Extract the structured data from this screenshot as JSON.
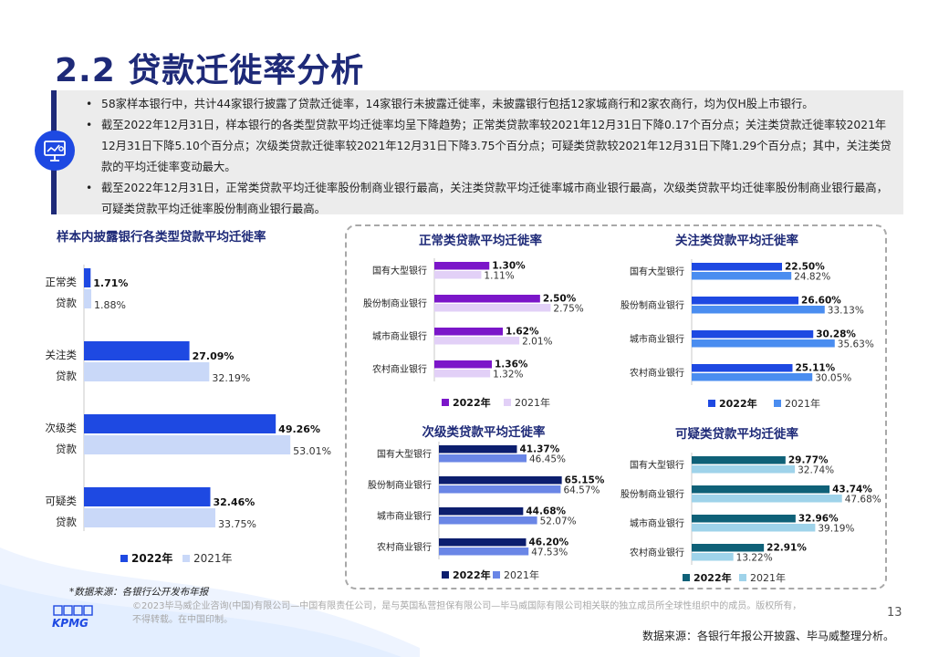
{
  "page": {
    "title": "2.2 贷款迁徙率分析",
    "page_number": "13",
    "source_note": "*数据来源：各银行公开发布年报",
    "bottom_source": "数据来源：各银行年报公开披露、毕马威整理分析。",
    "copyright": [
      "©2023毕马威企业咨询(中国)有限公司—中国有限责任公司，是与英国私营担保有限公司—毕马威国际有限公司相关联的独立成员所全球性组织中的成员。版权所有，",
      "不得转载。在中国印制。"
    ],
    "logo_text": "KPMG"
  },
  "summary": {
    "bullets": [
      "58家样本银行中，共计44家银行披露了贷款迁徙率，14家银行未披露迁徙率，未披露银行包括12家城商行和2家农商行，均为仅H股上市银行。",
      "截至2022年12月31日，样本银行的各类型贷款平均迁徙率均呈下降趋势；正常类贷款率较2021年12月31日下降0.17个百分点；关注类贷款迁徙率较2021年12月31日下降5.10个百分点；次级类贷款迁徙率较2021年12月31日下降3.75个百分点；可疑类贷款较2021年12月31日下降1.29个百分点；其中，关注类贷款的平均迁徙率变动最大。",
      "截至2022年12月31日，正常类贷款平均迁徙率股份制商业银行最高，关注类贷款平均迁徙率城市商业银行最高，次级类贷款平均迁徙率股份制商业银行最高，可疑类贷款平均迁徙率股份制商业银行最高。"
    ]
  },
  "chart_data": [
    {
      "id": "main",
      "type": "bar",
      "orientation": "horizontal",
      "title": "样本内披露银行各类型贷款平均迁徙率",
      "categories": [
        [
          "正常类",
          "贷款"
        ],
        [
          "关注类",
          "贷款"
        ],
        [
          "次级类",
          "贷款"
        ],
        [
          "可疑类",
          "贷款"
        ]
      ],
      "series": [
        {
          "name": "2022年",
          "values": [
            1.71,
            27.09,
            49.26,
            32.46
          ],
          "labels": [
            "1.71%",
            "27.09%",
            "49.26%",
            "32.46%"
          ],
          "color": "#1e49e2"
        },
        {
          "name": "2021年",
          "values": [
            1.88,
            32.19,
            53.01,
            33.75
          ],
          "labels": [
            "1.88%",
            "32.19%",
            "53.01%",
            "33.75%"
          ],
          "color": "#c9d8f8"
        }
      ],
      "xlim": [
        0,
        60
      ],
      "legend": "bottom-left"
    },
    {
      "id": "normal",
      "type": "bar",
      "orientation": "horizontal",
      "title": "正常类贷款平均迁徙率",
      "categories": [
        "国有大型银行",
        "股份制商业银行",
        "城市商业银行",
        "农村商业银行"
      ],
      "series": [
        {
          "name": "2022年",
          "values": [
            1.3,
            2.5,
            1.62,
            1.36
          ],
          "labels": [
            "1.30%",
            "2.50%",
            "1.62%",
            "1.36%"
          ],
          "color": "#7b16c9"
        },
        {
          "name": "2021年",
          "values": [
            1.11,
            2.75,
            2.01,
            1.32
          ],
          "labels": [
            "1.11%",
            "2.75%",
            "2.01%",
            "1.32%"
          ],
          "color": "#e2d0f7"
        }
      ],
      "xlim": [
        0,
        3
      ],
      "legend": "bottom"
    },
    {
      "id": "attention",
      "type": "bar",
      "orientation": "horizontal",
      "title": "关注类贷款平均迁徙率",
      "categories": [
        "国有大型银行",
        "股份制商业银行",
        "城市商业银行",
        "农村商业银行"
      ],
      "series": [
        {
          "name": "2022年",
          "values": [
            22.5,
            26.6,
            30.28,
            25.11
          ],
          "labels": [
            "22.50%",
            "26.60%",
            "30.28%",
            "25.11%"
          ],
          "color": "#1e49e2"
        },
        {
          "name": "2021年",
          "values": [
            24.82,
            33.13,
            35.63,
            30.05
          ],
          "labels": [
            "24.82%",
            "33.13%",
            "35.63%",
            "30.05%"
          ],
          "color": "#4a8df0"
        }
      ],
      "xlim": [
        0,
        40
      ],
      "legend": "bottom"
    },
    {
      "id": "substandard",
      "type": "bar",
      "orientation": "horizontal",
      "title": "次级类贷款平均迁徙率",
      "categories": [
        "国有大型银行",
        "股份制商业银行",
        "城市商业银行",
        "农村商业银行"
      ],
      "series": [
        {
          "name": "2022年",
          "values": [
            41.37,
            65.15,
            44.68,
            46.2
          ],
          "labels": [
            "41.37%",
            "65.15%",
            "44.68%",
            "46.20%"
          ],
          "color": "#0c1e6e"
        },
        {
          "name": "2021年",
          "values": [
            46.45,
            64.57,
            52.07,
            47.53
          ],
          "labels": [
            "46.45%",
            "64.57%",
            "52.07%",
            "47.53%"
          ],
          "color": "#6a86e6"
        }
      ],
      "xlim": [
        0,
        75
      ],
      "legend": "bottom"
    },
    {
      "id": "doubtful",
      "type": "bar",
      "orientation": "horizontal",
      "title": "可疑类贷款平均迁徙率",
      "categories": [
        "国有大型银行",
        "股份制商业银行",
        "城市商业银行",
        "农村商业银行"
      ],
      "series": [
        {
          "name": "2022年",
          "values": [
            29.77,
            43.74,
            32.96,
            22.91
          ],
          "labels": [
            "29.77%",
            "43.74%",
            "32.96%",
            "22.91%"
          ],
          "color": "#0f6178"
        },
        {
          "name": "2021年",
          "values": [
            32.74,
            47.68,
            39.19,
            13.22
          ],
          "labels": [
            "32.74%",
            "47.68%",
            "39.19%",
            "13.22%"
          ],
          "color": "#9fd3ea"
        }
      ],
      "xlim": [
        0,
        55
      ],
      "legend": "bottom"
    }
  ]
}
